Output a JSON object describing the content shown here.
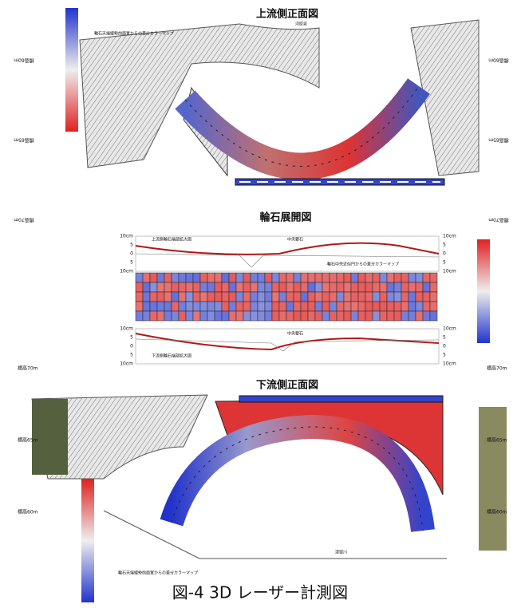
{
  "titles": {
    "upstream": "上流側正面図",
    "development": "輪石展開図",
    "downstream": "下流側正面図"
  },
  "caption": "図-4 3D レーザー計測図",
  "upstream": {
    "colormap_label": "輪石天端緩勢前面置からの差分カラーマップ",
    "place_label": "河原泉",
    "elevation_labels": [
      "標高60m",
      "標高65m",
      "標高70m"
    ]
  },
  "development": {
    "upper_label": "上流側輪石端部拡大図",
    "keystone_upper": "中央要石",
    "colormap_label": "輪石中央近似円からの差分カラーマップ",
    "lower_label": "下流側輪石端部拡大図",
    "keystone_lower": "中央要石",
    "scale_labels": [
      "10cm",
      "5",
      "0",
      "5",
      "10cm"
    ]
  },
  "downstream": {
    "elevation_labels": [
      "標高70m",
      "標高65m",
      "標高60m"
    ],
    "river_label": "津留川",
    "colormap_label": "輪石天端緩勢前面置からの差分カラーマップ"
  }
}
